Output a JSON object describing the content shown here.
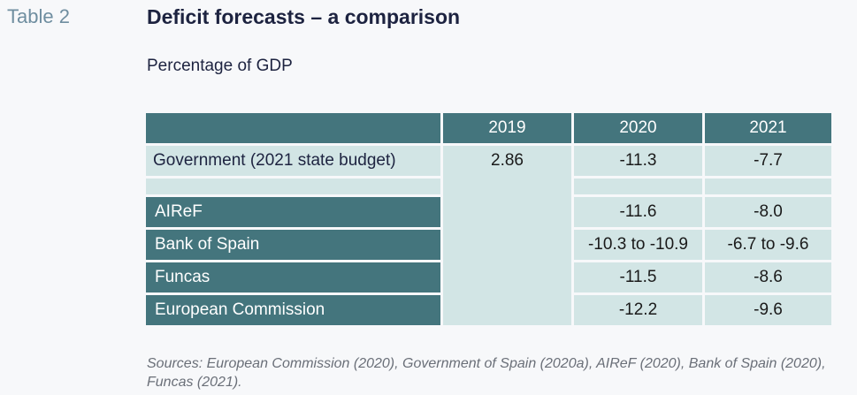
{
  "table_label": "Table 2",
  "title": "Deficit forecasts – a comparison",
  "subtitle": "Percentage of GDP",
  "columns": [
    "2019",
    "2020",
    "2021"
  ],
  "government": {
    "label": "Government (2021 state budget)",
    "v2019": "2.86",
    "v2020": "-11.3",
    "v2021": "-7.7"
  },
  "rows": [
    {
      "label": "AIReF",
      "v2020": "-11.6",
      "v2021": "-8.0"
    },
    {
      "label": "Bank of Spain",
      "v2020": "-10.3 to -10.9",
      "v2021": "-6.7 to -9.6"
    },
    {
      "label": "Funcas",
      "v2020": "-11.5",
      "v2021": "-8.6"
    },
    {
      "label": "European Commission",
      "v2020": "-12.2",
      "v2021": "-9.6"
    }
  ],
  "sources": "Sources: European Commission (2020), Government of Spain (2020a), AIReF (2020), Bank of Spain (2020), Funcas (2021)."
}
